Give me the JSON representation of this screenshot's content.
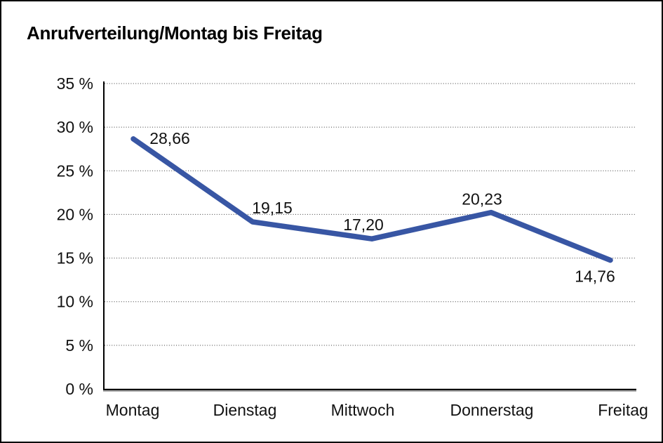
{
  "window": {
    "background_color": "#ffffff",
    "border_color": "#000000"
  },
  "chart_data": {
    "type": "line",
    "title": "Anrufverteilung/Montag bis Freitag",
    "categories": [
      "Montag",
      "Dienstag",
      "Mittwoch",
      "Donnerstag",
      "Freitag"
    ],
    "values": [
      28.66,
      19.15,
      17.2,
      20.23,
      14.76
    ],
    "data_labels": [
      "28,66",
      "19,15",
      "17,20",
      "20,23",
      "14,76"
    ],
    "xlabel": "",
    "ylabel": "",
    "ylim": [
      0,
      35
    ],
    "y_ticks": [
      0,
      5,
      10,
      15,
      20,
      25,
      30,
      35
    ],
    "y_tick_labels": [
      "0 %",
      "5 %",
      "10 %",
      "15 %",
      "20 %",
      "25 %",
      "30 %",
      "35 %"
    ],
    "grid": "horizontal-dotted",
    "legend": "none",
    "line_color": "#3856A4",
    "gridline_color": "#3d3d3d",
    "axis_color": "#000000",
    "text_color": "#111111"
  }
}
